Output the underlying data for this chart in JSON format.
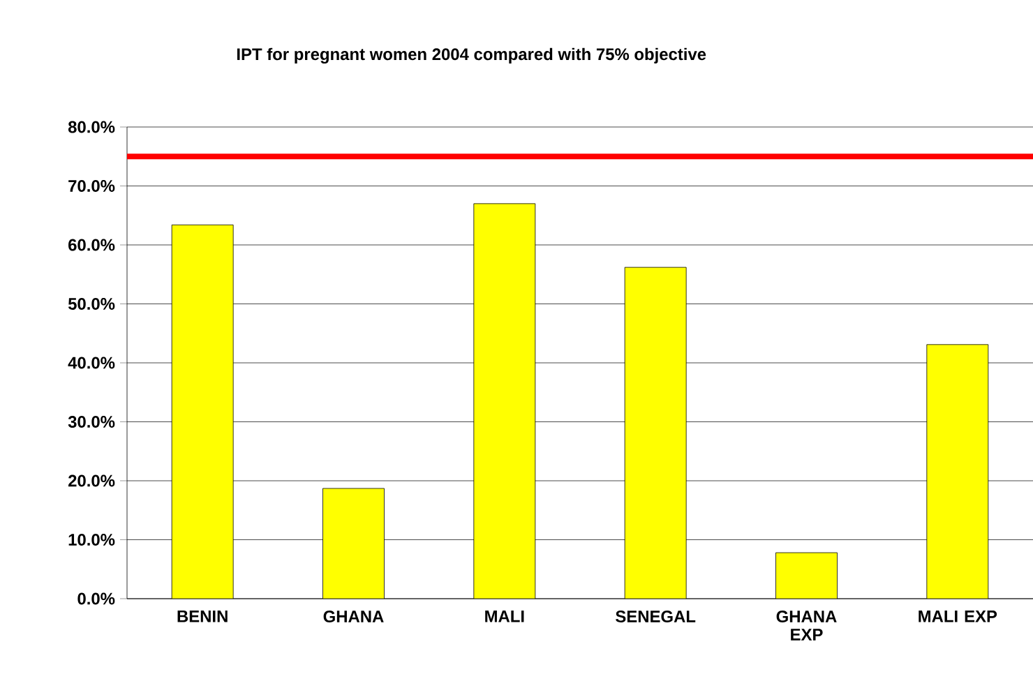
{
  "chart_data": {
    "type": "bar",
    "title": "IPT for pregnant women 2004 compared with 75% objective",
    "categories": [
      "BENIN",
      "GHANA",
      "MALI",
      "SENEGAL",
      "GHANA EXP",
      "MALI EXP"
    ],
    "values": [
      63.4,
      18.7,
      67.0,
      56.2,
      7.8,
      43.1
    ],
    "color": "#ffff00",
    "ylim": [
      0,
      80
    ],
    "yticks": [
      {
        "value": 0,
        "label": "0.0%"
      },
      {
        "value": 10,
        "label": "10.0%"
      },
      {
        "value": 20,
        "label": "20.0%"
      },
      {
        "value": 30,
        "label": "30.0%"
      },
      {
        "value": 40,
        "label": "40.0%"
      },
      {
        "value": 50,
        "label": "50.0%"
      },
      {
        "value": 60,
        "label": "60.0%"
      },
      {
        "value": 70,
        "label": "70.0%"
      },
      {
        "value": 80,
        "label": "80.0%"
      }
    ],
    "grid": "y",
    "ref_lines": [
      {
        "axis": "y",
        "value": 75,
        "color": "#ff0000"
      }
    ]
  }
}
